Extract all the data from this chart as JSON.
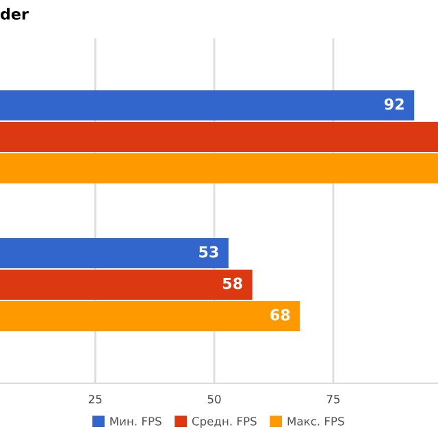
{
  "chart_data": {
    "type": "bar",
    "orientation": "horizontal",
    "title": "der",
    "categories": [
      null,
      null
    ],
    "series": [
      {
        "name": "Мин. FPS",
        "color": "#3366cc",
        "values": [
          92,
          53
        ],
        "value_labels": [
          "92",
          "53"
        ]
      },
      {
        "name": "Средн. FPS",
        "color": "#dc3912",
        "values": [
          97,
          58
        ],
        "value_labels": [
          null,
          "58"
        ]
      },
      {
        "name": "Макс. FPS",
        "color": "#ff9900",
        "values": [
          97,
          68
        ],
        "value_labels": [
          null,
          "68"
        ]
      }
    ],
    "xlim": [
      5,
      97
    ],
    "xticks": [
      25,
      50,
      75
    ],
    "grid": "x",
    "legend": "bottom"
  }
}
